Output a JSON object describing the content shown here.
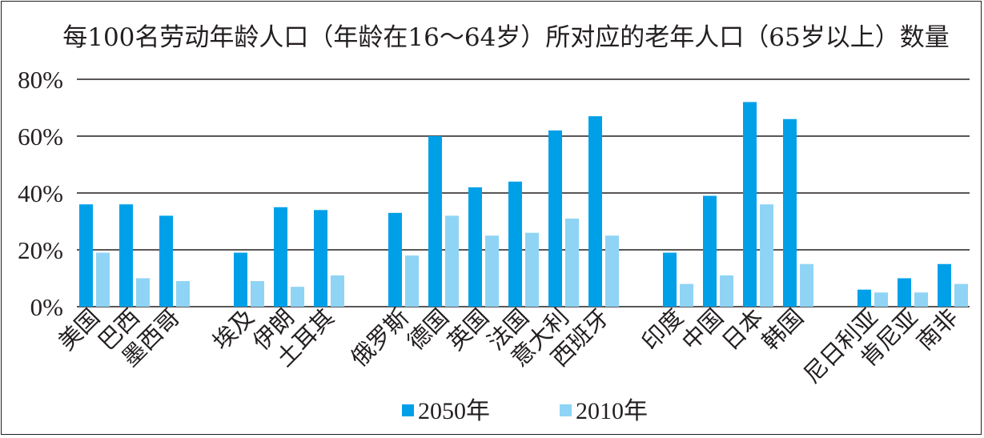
{
  "chart_data": {
    "type": "bar",
    "title": "每100名劳动年龄人口（年龄在16～64岁）所对应的老年人口（65岁以上）数量",
    "xlabel": "",
    "ylabel": "",
    "ylim": [
      0,
      80
    ],
    "yticks": [
      "0%",
      "20%",
      "40%",
      "60%",
      "80%"
    ],
    "grid": true,
    "legend_position": "bottom-center",
    "groups": [
      [
        "美国",
        "巴西",
        "墨西哥"
      ],
      [
        "埃及",
        "伊朗",
        "土耳其"
      ],
      [
        "俄罗斯",
        "德国",
        "英国",
        "法国",
        "意大利",
        "西班牙"
      ],
      [
        "印度",
        "中国",
        "日本",
        "韩国"
      ],
      [
        "尼日利亚",
        "肯尼亚",
        "南非"
      ]
    ],
    "categories": [
      "美国",
      "巴西",
      "墨西哥",
      "埃及",
      "伊朗",
      "土耳其",
      "俄罗斯",
      "德国",
      "英国",
      "法国",
      "意大利",
      "西班牙",
      "印度",
      "中国",
      "日本",
      "韩国",
      "尼日利亚",
      "肯尼亚",
      "南非"
    ],
    "series": [
      {
        "name": "2050年",
        "color": "#00a0e9",
        "values": [
          36,
          36,
          32,
          19,
          35,
          34,
          33,
          60,
          42,
          44,
          62,
          67,
          19,
          39,
          72,
          66,
          6,
          10,
          15
        ]
      },
      {
        "name": "2010年",
        "color": "#8fd4f5",
        "values": [
          19,
          10,
          9,
          9,
          7,
          11,
          18,
          32,
          25,
          26,
          31,
          25,
          8,
          11,
          36,
          15,
          5,
          5,
          8
        ]
      }
    ]
  }
}
